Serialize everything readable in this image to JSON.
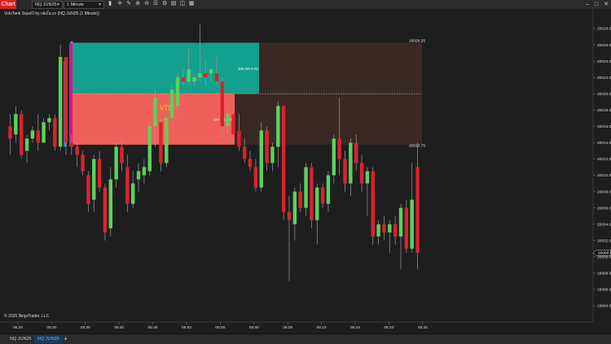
{
  "toolbar": {
    "chart_label": "Chart",
    "instrument": "NQ JUN25",
    "interval": "1 Minute",
    "icons": [
      "bars-icon",
      "crosshair-icon",
      "pencil-icon",
      "zoom-in-icon",
      "zoom-out-icon",
      "properties-icon",
      "strategy-icon",
      "template-icon",
      "lock-icon",
      "data-box-icon",
      "calendar-icon"
    ]
  },
  "indicator_label": "VoluTank SqueD by nleZa.co (NQ JUN25 (1 Minute))",
  "copyright": "© 2025 NinjaTrader, LLC",
  "zone_labels": {
    "upper_price": "20026.25",
    "lower_price": "20013.75",
    "upper_stats": "165 (53.4 %)",
    "lower_stats": "144 (46.6 %)",
    "signal": "VTS"
  },
  "price_axis": {
    "labels": [
      "20028.00",
      "20026.00",
      "20024.00",
      "20022.00",
      "20020.00",
      "20018.00",
      "20016.00",
      "20014.00",
      "20012.00",
      "20010.00",
      "20008.00",
      "20006.00",
      "20004.00",
      "20002.00",
      "20000.00",
      "19998.00",
      "19996.00",
      "19994.00"
    ],
    "current_price": "20000.50"
  },
  "time_axis": {
    "labels": [
      "05:25",
      "05:30",
      "05:35",
      "05:40",
      "05:45",
      "05:50",
      "05:55",
      "06:00",
      "06:05",
      "06:10",
      "06:15",
      "06:20",
      "06:25"
    ]
  },
  "tabs": [
    {
      "label": "NQ JUN25",
      "active": false
    },
    {
      "label": "NQ JUN25",
      "active": true
    }
  ],
  "colors": {
    "background": "#1e1e1e",
    "bull": "#5dd15d",
    "bear": "#d9232e",
    "zone_top": "#14a08e",
    "zone_bottom": "#f0605a",
    "zone_ext": "#3a2824"
  },
  "chart_data": {
    "type": "candlestick",
    "instrument": "NQ JUN25",
    "timeframe": "1 Minute",
    "ylim": [
      19994,
      20029
    ],
    "candles": [
      {
        "t": "05:24",
        "o": 20016.0,
        "h": 20017.5,
        "l": 20012.5,
        "c": 20014.5
      },
      {
        "t": "05:25",
        "o": 20015.0,
        "h": 20018.5,
        "l": 20014.0,
        "c": 20017.5
      },
      {
        "t": "05:26",
        "o": 20017.5,
        "h": 20018.0,
        "l": 20012.0,
        "c": 20012.5
      },
      {
        "t": "05:27",
        "o": 20013.0,
        "h": 20015.0,
        "l": 20011.5,
        "c": 20014.5
      },
      {
        "t": "05:28",
        "o": 20014.5,
        "h": 20016.0,
        "l": 20014.0,
        "c": 20015.5
      },
      {
        "t": "05:29",
        "o": 20015.5,
        "h": 20017.5,
        "l": 20013.0,
        "c": 20014.0
      },
      {
        "t": "05:30",
        "o": 20014.0,
        "h": 20017.0,
        "l": 20014.0,
        "c": 20016.5
      },
      {
        "t": "05:31",
        "o": 20016.5,
        "h": 20017.5,
        "l": 20015.5,
        "c": 20017.0
      },
      {
        "t": "05:32",
        "o": 20017.0,
        "h": 20017.5,
        "l": 20013.0,
        "c": 20013.5
      },
      {
        "t": "05:33",
        "o": 20013.5,
        "h": 20026.0,
        "l": 20013.0,
        "c": 20024.5
      },
      {
        "t": "05:34",
        "o": 20024.5,
        "h": 20024.5,
        "l": 20012.5,
        "c": 20014.0
      },
      {
        "t": "05:35",
        "o": 20014.0,
        "h": 20015.0,
        "l": 20012.5,
        "c": 20013.5
      },
      {
        "t": "05:36",
        "o": 20013.5,
        "h": 20014.0,
        "l": 20011.0,
        "c": 20012.5
      },
      {
        "t": "05:37",
        "o": 20012.5,
        "h": 20013.0,
        "l": 20010.0,
        "c": 20010.5
      },
      {
        "t": "05:38",
        "o": 20010.0,
        "h": 20010.5,
        "l": 20005.5,
        "c": 20006.5
      },
      {
        "t": "05:39",
        "o": 20007.0,
        "h": 20012.5,
        "l": 20005.5,
        "c": 20012.0
      },
      {
        "t": "05:40",
        "o": 20012.0,
        "h": 20013.0,
        "l": 20008.0,
        "c": 20008.5
      },
      {
        "t": "05:41",
        "o": 20008.5,
        "h": 20009.0,
        "l": 20002.0,
        "c": 20003.0
      },
      {
        "t": "05:42",
        "o": 20003.5,
        "h": 20011.0,
        "l": 20002.5,
        "c": 20009.5
      },
      {
        "t": "05:43",
        "o": 20009.5,
        "h": 20014.0,
        "l": 20008.5,
        "c": 20013.5
      },
      {
        "t": "05:44",
        "o": 20013.5,
        "h": 20014.5,
        "l": 20010.5,
        "c": 20011.5
      },
      {
        "t": "05:45",
        "o": 20011.0,
        "h": 20012.5,
        "l": 20005.5,
        "c": 20006.5
      },
      {
        "t": "05:46",
        "o": 20006.5,
        "h": 20010.5,
        "l": 20006.0,
        "c": 20009.0
      },
      {
        "t": "05:47",
        "o": 20009.5,
        "h": 20011.5,
        "l": 20008.0,
        "c": 20010.5
      },
      {
        "t": "05:48",
        "o": 20010.0,
        "h": 20012.0,
        "l": 20009.0,
        "c": 20011.0
      },
      {
        "t": "05:49",
        "o": 20010.5,
        "h": 20016.5,
        "l": 20010.0,
        "c": 20016.0
      },
      {
        "t": "05:50",
        "o": 20016.0,
        "h": 20020.5,
        "l": 20013.5,
        "c": 20019.5
      },
      {
        "t": "05:51",
        "o": 20016.5,
        "h": 20017.0,
        "l": 20010.5,
        "c": 20011.5
      },
      {
        "t": "05:52",
        "o": 20011.5,
        "h": 20017.5,
        "l": 20011.0,
        "c": 20017.0
      },
      {
        "t": "05:53",
        "o": 20017.0,
        "h": 20021.0,
        "l": 20016.5,
        "c": 20020.5
      },
      {
        "t": "05:54",
        "o": 20018.5,
        "h": 20022.5,
        "l": 20017.5,
        "c": 20022.0
      },
      {
        "t": "05:55",
        "o": 20022.0,
        "h": 20023.0,
        "l": 20021.0,
        "c": 20021.5
      },
      {
        "t": "05:56",
        "o": 20021.5,
        "h": 20025.5,
        "l": 20021.0,
        "c": 20023.0
      },
      {
        "t": "05:57",
        "o": 20021.5,
        "h": 20022.5,
        "l": 20021.0,
        "c": 20022.0
      },
      {
        "t": "05:58",
        "o": 20022.0,
        "h": 20028.5,
        "l": 20021.5,
        "c": 20022.5
      },
      {
        "t": "05:59",
        "o": 20022.5,
        "h": 20024.0,
        "l": 20021.0,
        "c": 20022.0
      },
      {
        "t": "06:00",
        "o": 20022.5,
        "h": 20023.0,
        "l": 20021.5,
        "c": 20023.0
      },
      {
        "t": "06:01",
        "o": 20022.5,
        "h": 20024.5,
        "l": 20021.0,
        "c": 20021.5
      },
      {
        "t": "06:02",
        "o": 20021.5,
        "h": 20022.0,
        "l": 20014.5,
        "c": 20016.0
      },
      {
        "t": "06:03",
        "o": 20016.0,
        "h": 20018.0,
        "l": 20015.0,
        "c": 20017.5
      },
      {
        "t": "06:04",
        "o": 20017.5,
        "h": 20018.0,
        "l": 20014.5,
        "c": 20015.0
      },
      {
        "t": "06:05",
        "o": 20015.5,
        "h": 20017.5,
        "l": 20013.0,
        "c": 20013.5
      },
      {
        "t": "06:06",
        "o": 20013.5,
        "h": 20014.5,
        "l": 20011.5,
        "c": 20012.0
      },
      {
        "t": "06:07",
        "o": 20012.0,
        "h": 20013.0,
        "l": 20010.5,
        "c": 20011.0
      },
      {
        "t": "06:08",
        "o": 20011.0,
        "h": 20012.0,
        "l": 20008.0,
        "c": 20008.5
      },
      {
        "t": "06:09",
        "o": 20008.5,
        "h": 20016.5,
        "l": 20008.0,
        "c": 20015.5
      },
      {
        "t": "06:10",
        "o": 20015.5,
        "h": 20016.0,
        "l": 20010.5,
        "c": 20011.5
      },
      {
        "t": "06:11",
        "o": 20011.5,
        "h": 20014.0,
        "l": 20010.5,
        "c": 20013.5
      },
      {
        "t": "06:12",
        "o": 20013.5,
        "h": 20019.0,
        "l": 20011.0,
        "c": 20018.5
      },
      {
        "t": "06:13",
        "o": 20018.5,
        "h": 20018.5,
        "l": 20004.5,
        "c": 20005.5
      },
      {
        "t": "06:14",
        "o": 20005.5,
        "h": 20007.5,
        "l": 19997.0,
        "c": 20004.5
      },
      {
        "t": "06:15",
        "o": 20004.0,
        "h": 20008.5,
        "l": 20002.0,
        "c": 20008.0
      },
      {
        "t": "06:16",
        "o": 20008.0,
        "h": 20009.0,
        "l": 20005.5,
        "c": 20006.0
      },
      {
        "t": "06:17",
        "o": 20006.0,
        "h": 20011.5,
        "l": 20005.0,
        "c": 20011.0
      },
      {
        "t": "06:18",
        "o": 20011.0,
        "h": 20011.5,
        "l": 20003.5,
        "c": 20004.5
      },
      {
        "t": "06:19",
        "o": 20004.5,
        "h": 20009.0,
        "l": 20001.5,
        "c": 20008.5
      },
      {
        "t": "06:20",
        "o": 20008.5,
        "h": 20009.0,
        "l": 20006.0,
        "c": 20006.5
      },
      {
        "t": "06:21",
        "o": 20006.5,
        "h": 20010.5,
        "l": 20005.5,
        "c": 20010.0
      },
      {
        "t": "06:22",
        "o": 20010.0,
        "h": 20015.0,
        "l": 20009.0,
        "c": 20014.5
      },
      {
        "t": "06:23",
        "o": 20014.5,
        "h": 20019.5,
        "l": 20010.0,
        "c": 20012.0
      },
      {
        "t": "06:24",
        "o": 20012.0,
        "h": 20013.0,
        "l": 20008.0,
        "c": 20009.0
      },
      {
        "t": "06:25",
        "o": 20009.0,
        "h": 20014.5,
        "l": 20007.5,
        "c": 20014.0
      },
      {
        "t": "06:26",
        "o": 20014.0,
        "h": 20015.0,
        "l": 20010.5,
        "c": 20011.5
      },
      {
        "t": "06:27",
        "o": 20011.5,
        "h": 20012.5,
        "l": 20008.0,
        "c": 20009.0
      },
      {
        "t": "06:28",
        "o": 20009.0,
        "h": 20011.0,
        "l": 20005.0,
        "c": 20010.5
      },
      {
        "t": "06:29",
        "o": 20010.5,
        "h": 20011.0,
        "l": 20001.5,
        "c": 20002.5
      },
      {
        "t": "06:30",
        "o": 20002.5,
        "h": 20004.5,
        "l": 20001.5,
        "c": 20004.0
      },
      {
        "t": "06:31",
        "o": 20004.0,
        "h": 20005.0,
        "l": 20002.0,
        "c": 20003.0
      },
      {
        "t": "06:32",
        "o": 20003.0,
        "h": 20004.5,
        "l": 20000.5,
        "c": 20004.0
      },
      {
        "t": "06:33",
        "o": 20004.0,
        "h": 20005.0,
        "l": 20001.5,
        "c": 20002.5
      },
      {
        "t": "06:34",
        "o": 20002.5,
        "h": 20006.5,
        "l": 19998.5,
        "c": 20006.0
      },
      {
        "t": "06:35",
        "o": 20006.0,
        "h": 20007.0,
        "l": 20000.5,
        "c": 20001.0
      },
      {
        "t": "06:36",
        "o": 20001.0,
        "h": 20011.5,
        "l": 20000.5,
        "c": 20007.0
      },
      {
        "t": "06:37",
        "o": 20011.0,
        "h": 20014.0,
        "l": 19998.5,
        "c": 20000.5
      }
    ]
  }
}
